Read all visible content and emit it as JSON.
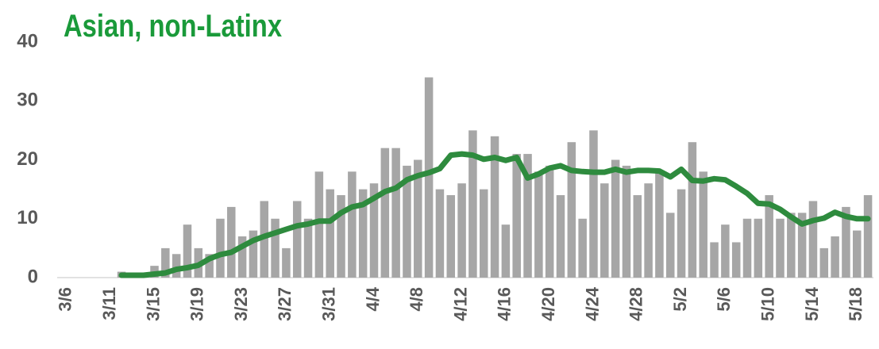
{
  "chart_data": {
    "type": "bar",
    "title": "Asian, non-Latinx",
    "categories": [
      "3/6",
      null,
      null,
      null,
      "3/11",
      null,
      null,
      null,
      "3/15",
      null,
      null,
      null,
      "3/19",
      null,
      null,
      null,
      "3/23",
      null,
      null,
      null,
      "3/27",
      null,
      null,
      null,
      "3/31",
      null,
      null,
      null,
      "4/4",
      null,
      null,
      null,
      "4/8",
      null,
      null,
      null,
      "4/12",
      null,
      null,
      null,
      "4/16",
      null,
      null,
      null,
      "4/20",
      null,
      null,
      null,
      "4/24",
      null,
      null,
      null,
      "4/28",
      null,
      null,
      null,
      "5/2",
      null,
      null,
      null,
      "5/6",
      null,
      null,
      null,
      "5/10",
      null,
      null,
      null,
      "5/14",
      null,
      null,
      null,
      "5/18",
      null
    ],
    "series": [
      {
        "type": "bar",
        "color": "#a6a6a6",
        "values": [
          0,
          0,
          0,
          0,
          0,
          1,
          0,
          0,
          2,
          5,
          4,
          9,
          5,
          4,
          10,
          12,
          7,
          8,
          13,
          10,
          5,
          13,
          10,
          18,
          15,
          14,
          18,
          15,
          16,
          22,
          22,
          19,
          20,
          34,
          15,
          14,
          16,
          25,
          15,
          24,
          9,
          21,
          21,
          18,
          19,
          14,
          23,
          10,
          25,
          16,
          20,
          19,
          14,
          16,
          18,
          11,
          15,
          23,
          18,
          6,
          9,
          6,
          10,
          10,
          14,
          10,
          11,
          11,
          13,
          5,
          7,
          12,
          8,
          14
        ]
      },
      {
        "type": "line",
        "color": "#2e8b3e",
        "values": [
          null,
          null,
          null,
          null,
          null,
          0.4,
          0.4,
          0.4,
          0.6,
          0.8,
          1.4,
          1.7,
          2.1,
          3.2,
          3.9,
          4.3,
          5.3,
          6.3,
          7.0,
          7.6,
          8.2,
          8.8,
          9.1,
          9.6,
          9.6,
          11.0,
          12.0,
          12.4,
          13.5,
          14.6,
          15.2,
          16.6,
          17.3,
          17.8,
          18.5,
          20.8,
          21.0,
          20.8,
          20.1,
          20.4,
          19.9,
          20.4,
          16.9,
          17.6,
          18.6,
          19.0,
          18.2,
          18.0,
          17.9,
          17.9,
          18.4,
          17.9,
          18.2,
          18.2,
          18.1,
          17.1,
          18.4,
          16.5,
          16.4,
          16.8,
          16.6,
          15.5,
          14.3,
          12.6,
          12.5,
          11.6,
          10.3,
          9.1,
          9.7,
          10.1,
          11.1,
          10.4,
          10.0,
          10.0
        ]
      }
    ],
    "ylim": [
      0,
      40
    ],
    "yticks": [
      0,
      10,
      20,
      30,
      40
    ],
    "grid": false
  }
}
